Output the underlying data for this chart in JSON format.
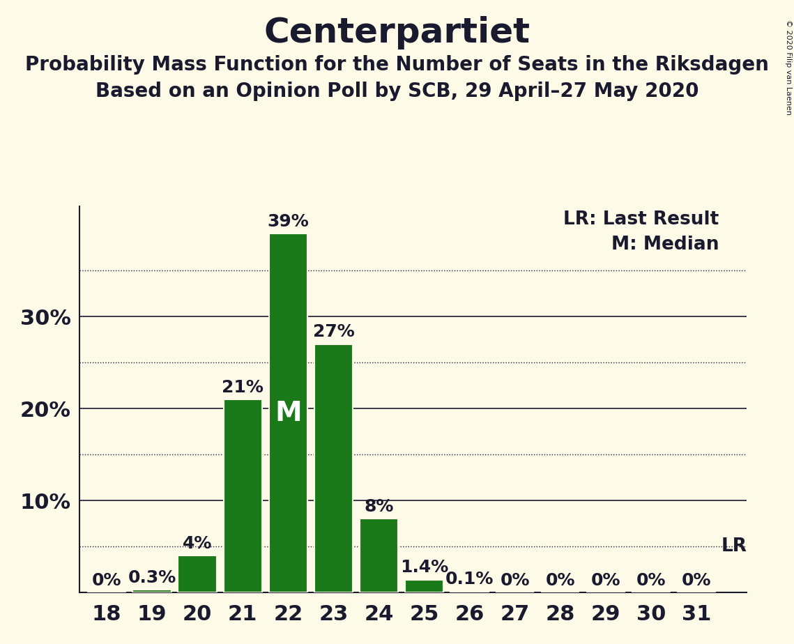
{
  "title": "Centerpartiet",
  "subtitle1": "Probability Mass Function for the Number of Seats in the Riksdagen",
  "subtitle2": "Based on an Opinion Poll by SCB, 29 April–27 May 2020",
  "copyright": "© 2020 Filip van Laenen",
  "seats": [
    18,
    19,
    20,
    21,
    22,
    23,
    24,
    25,
    26,
    27,
    28,
    29,
    30,
    31
  ],
  "values": [
    0.0,
    0.3,
    4.0,
    21.0,
    39.0,
    27.0,
    8.0,
    1.4,
    0.1,
    0.0,
    0.0,
    0.0,
    0.0,
    0.0
  ],
  "bar_color": "#1a7a1a",
  "median_seat": 22,
  "median_label": "M",
  "lr_value": 5.0,
  "lr_label": "LR",
  "lr_legend": "LR: Last Result",
  "m_legend": "M: Median",
  "background_color": "#fefae8",
  "text_color": "#1a1a2e",
  "yticks": [
    10,
    20,
    30
  ],
  "ytick_dotted": [
    5,
    15,
    25,
    35
  ],
  "ylim": [
    0,
    42
  ],
  "title_fontsize": 36,
  "subtitle_fontsize": 20,
  "bar_label_fontsize": 18,
  "legend_fontsize": 19,
  "tick_fontsize": 22,
  "median_fontsize": 28
}
